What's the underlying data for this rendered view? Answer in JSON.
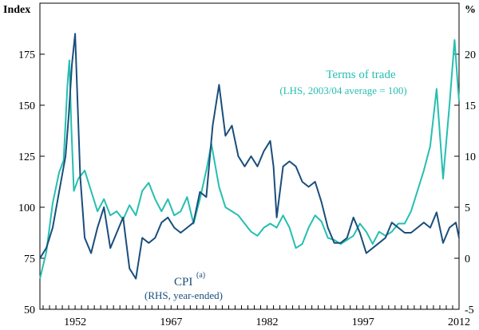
{
  "chart_data": {
    "type": "line",
    "title": "",
    "left_axis": {
      "label": "Index",
      "ylim": [
        50,
        200
      ],
      "ticks": [
        50,
        75,
        100,
        125,
        150,
        175
      ]
    },
    "right_axis": {
      "label": "%",
      "ylim": [
        -5,
        25
      ],
      "ticks": [
        -5,
        0,
        5,
        10,
        15,
        20
      ]
    },
    "x_axis": {
      "xlim": [
        1946.5,
        2012
      ],
      "tick_labels": [
        "1952",
        "1967",
        "1982",
        "1997",
        "2012"
      ],
      "tick_years": [
        1952,
        1967,
        1982,
        1997,
        2012
      ]
    },
    "grid": false,
    "series": [
      {
        "name": "Terms of trade",
        "annotation": [
          "Terms of trade",
          "(LHS, 2003/04 average = 100)"
        ],
        "axis": "left",
        "color": "#25BFB0",
        "x": [
          1946.5,
          1947.5,
          1948.5,
          1949.5,
          1950.2,
          1950.8,
          1951.1,
          1951.4,
          1951.8,
          1952.5,
          1953.5,
          1954.5,
          1955.5,
          1956.5,
          1957.5,
          1958.5,
          1959.5,
          1960.5,
          1961.5,
          1962.5,
          1963.5,
          1964.5,
          1965.5,
          1966.5,
          1967.5,
          1968.5,
          1969.5,
          1970.5,
          1971.5,
          1972.5,
          1973.3,
          1974.5,
          1975.5,
          1976.5,
          1977.5,
          1978.5,
          1979.5,
          1980.5,
          1981.5,
          1982.5,
          1983.5,
          1984.5,
          1985.5,
          1986.5,
          1987.5,
          1988.5,
          1989.5,
          1990.5,
          1991.5,
          1992.5,
          1993.5,
          1994.5,
          1995.5,
          1996.5,
          1997.5,
          1998.5,
          1999.5,
          2000.5,
          2001.5,
          2002.5,
          2003.5,
          2004.5,
          2005.5,
          2006.5,
          2007.5,
          2008.5,
          2009.5,
          2010.5,
          2011.3,
          2011.8,
          2012.0
        ],
        "values": [
          65,
          78,
          102,
          117,
          123,
          160,
          172,
          140,
          108,
          114,
          118,
          108,
          98,
          104,
          96,
          98,
          94,
          101,
          96,
          108,
          112,
          104,
          98,
          104,
          96,
          98,
          105,
          92,
          104,
          118,
          131,
          110,
          100,
          98,
          96,
          92,
          88,
          86,
          90,
          92,
          90,
          96,
          90,
          80,
          82,
          90,
          96,
          93,
          85,
          84,
          82,
          84,
          86,
          92,
          88,
          82,
          88,
          86,
          88,
          92,
          92,
          98,
          108,
          118,
          130,
          158,
          114,
          150,
          182,
          160,
          152
        ]
      },
      {
        "name": "CPI(a)",
        "annotation": [
          "CPI",
          "(a)",
          "(RHS, year-ended)"
        ],
        "axis": "right",
        "color": "#1A4E7C",
        "x": [
          1946.5,
          1947.5,
          1948.5,
          1949.5,
          1950.5,
          1951.0,
          1951.5,
          1952.0,
          1952.8,
          1953.5,
          1954.5,
          1955.5,
          1956.5,
          1957.5,
          1958.5,
          1959.5,
          1960.5,
          1961.5,
          1962.5,
          1963.5,
          1964.5,
          1965.5,
          1966.5,
          1967.5,
          1968.5,
          1969.5,
          1970.5,
          1971.5,
          1972.5,
          1973.5,
          1974.5,
          1975.5,
          1976.5,
          1977.5,
          1978.5,
          1979.5,
          1980.5,
          1981.5,
          1982.5,
          1983.0,
          1983.5,
          1984.5,
          1985.5,
          1986.5,
          1987.5,
          1988.5,
          1989.5,
          1990.5,
          1991.5,
          1992.5,
          1993.5,
          1994.5,
          1995.5,
          1996.5,
          1997.5,
          1998.5,
          1999.5,
          2000.5,
          2001.5,
          2002.5,
          2003.5,
          2004.5,
          2005.5,
          2006.5,
          2007.5,
          2008.5,
          2009.5,
          2010.5,
          2011.5,
          2012.0
        ],
        "values": [
          0.0,
          1.0,
          3.0,
          6.5,
          10.0,
          14.0,
          19.0,
          22.0,
          8.0,
          2.0,
          0.5,
          3.0,
          5.0,
          1.0,
          2.5,
          4.0,
          -1.0,
          -2.0,
          2.0,
          1.5,
          2.0,
          3.5,
          4.0,
          3.0,
          2.5,
          3.0,
          3.5,
          6.5,
          6.0,
          13.0,
          17.0,
          12.0,
          13.0,
          10.0,
          9.0,
          10.0,
          9.0,
          10.5,
          11.5,
          9.0,
          4.0,
          9.0,
          9.5,
          9.0,
          7.5,
          7.0,
          7.5,
          5.5,
          3.0,
          1.5,
          1.5,
          2.0,
          4.0,
          2.5,
          0.5,
          1.0,
          1.5,
          2.0,
          3.5,
          3.0,
          2.5,
          2.5,
          3.0,
          3.5,
          3.0,
          4.5,
          1.5,
          3.0,
          3.5,
          2.0
        ]
      }
    ]
  }
}
